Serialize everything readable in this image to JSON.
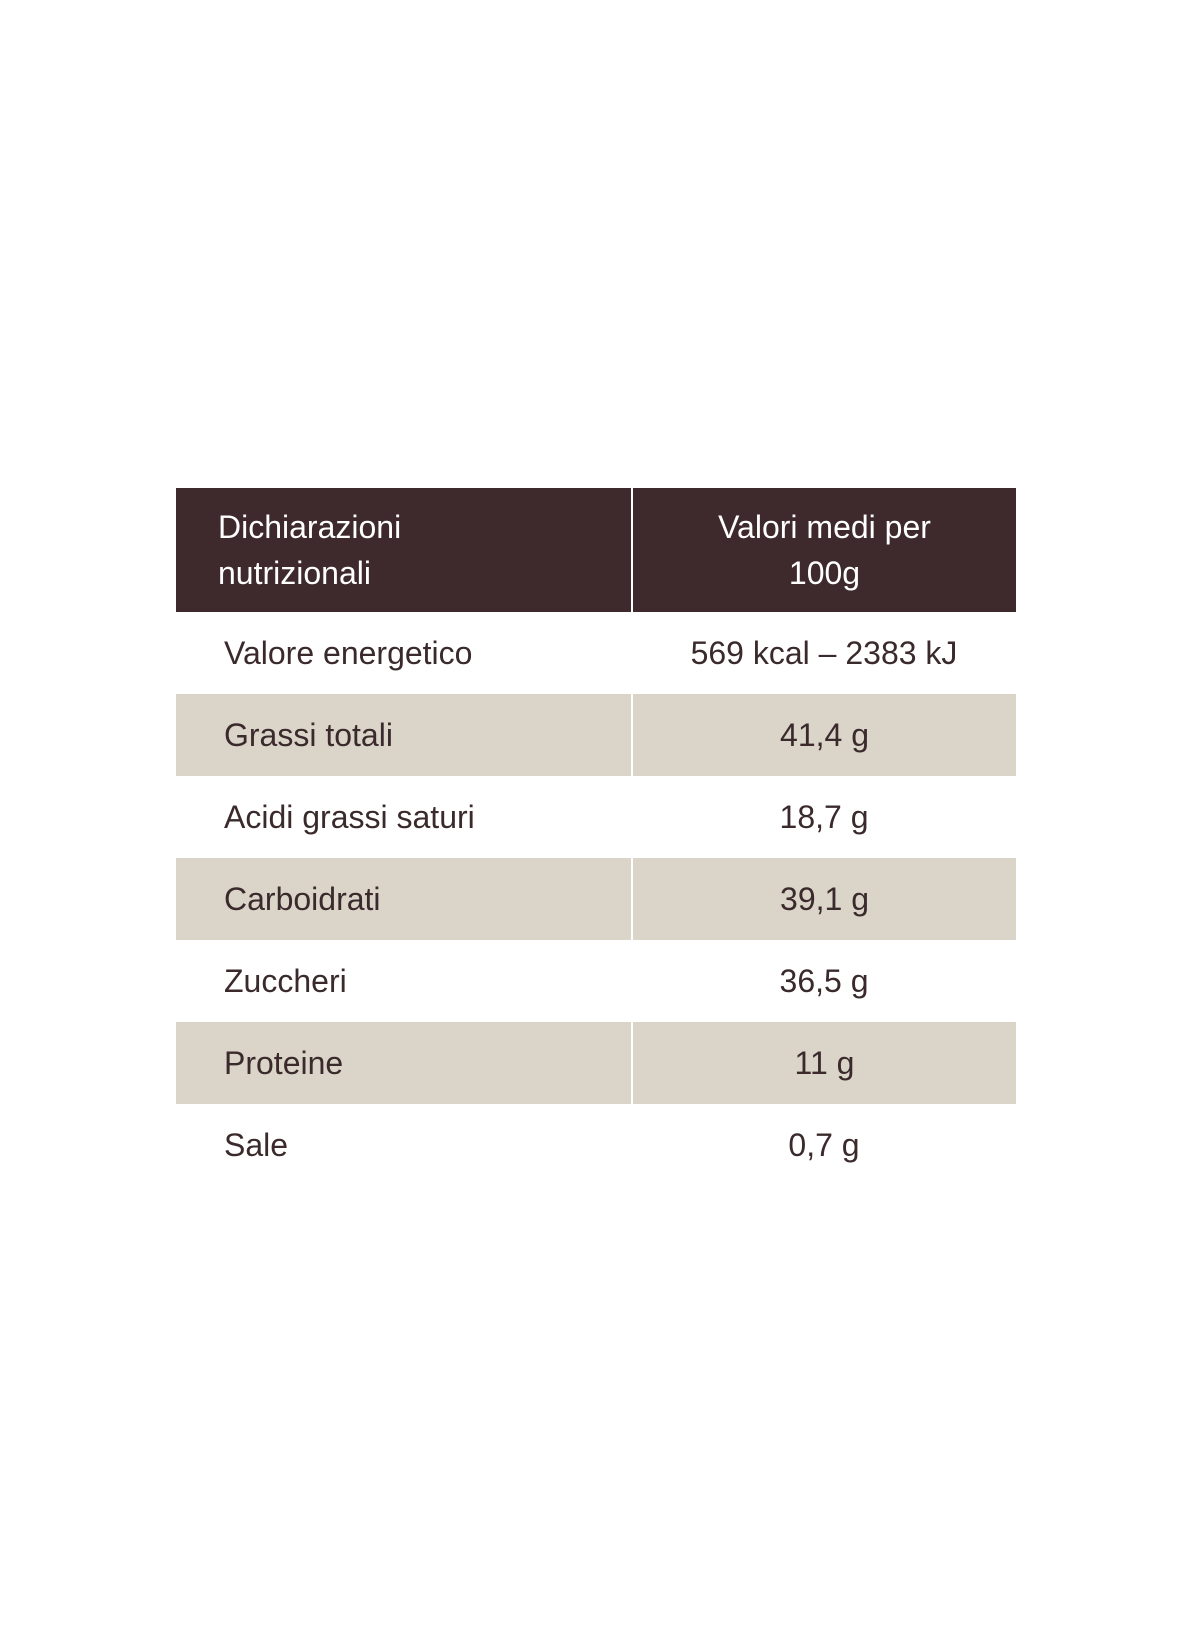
{
  "table": {
    "header": {
      "col1_line1": "Dichiarazioni",
      "col1_line2": "nutrizionali",
      "col2_line1": "Valori medi per",
      "col2_line2": "100g"
    },
    "rows": [
      {
        "name": "Valore energetico",
        "value": "569 kcal – 2383 kJ"
      },
      {
        "name": "Grassi totali",
        "value": "41,4 g"
      },
      {
        "name": "Acidi grassi saturi",
        "value": "18,7 g"
      },
      {
        "name": "Carboidrati",
        "value": "39,1 g"
      },
      {
        "name": "Zuccheri",
        "value": "36,5 g"
      },
      {
        "name": "Proteine",
        "value": "11 g"
      },
      {
        "name": "Sale",
        "value": "0,7 g"
      }
    ]
  },
  "colors": {
    "header_bg": "#3e2a2d",
    "header_text": "#ffffff",
    "shaded_row_bg": "#dbd4c9",
    "body_text": "#3a2a2c"
  }
}
